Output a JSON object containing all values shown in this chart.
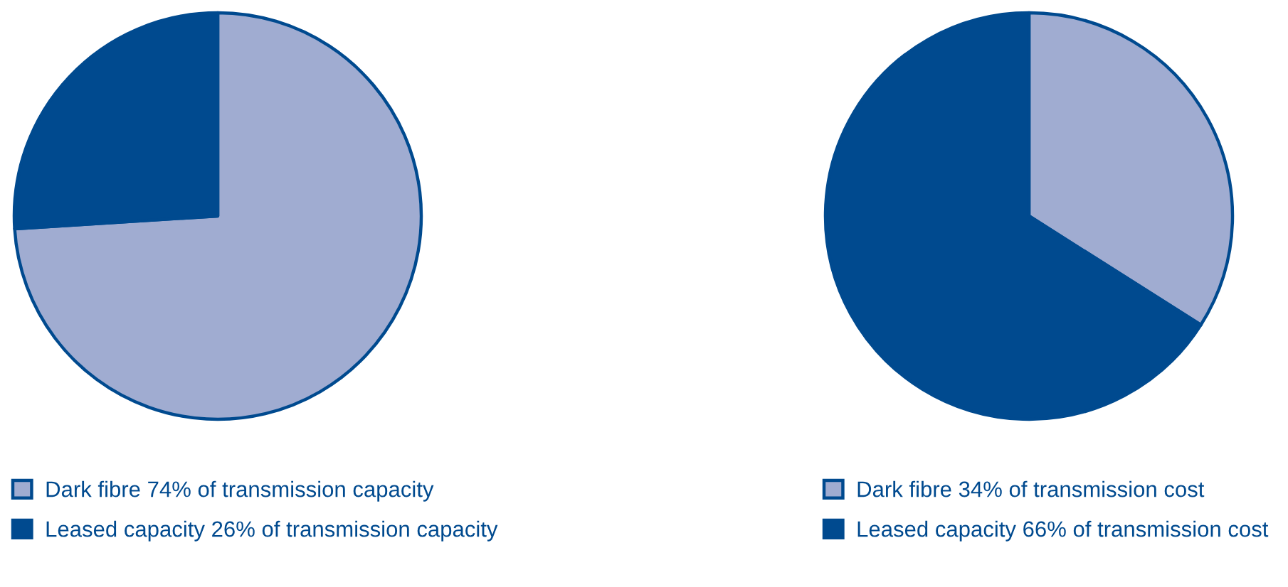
{
  "chart_data": [
    {
      "type": "pie",
      "categories": [
        "Dark fibre 74% of transmission capacity",
        "Leased capacity 26% of transmission capacity"
      ],
      "values": [
        74,
        26
      ],
      "colors": [
        "#a0acd1",
        "#004a8f"
      ],
      "legend": "bottom"
    },
    {
      "type": "pie",
      "categories": [
        "Dark fibre 34% of transmission cost",
        "Leased capacity 66% of transmission cost"
      ],
      "values": [
        34,
        66
      ],
      "colors": [
        "#a0acd1",
        "#004a8f"
      ],
      "legend": "bottom"
    }
  ]
}
